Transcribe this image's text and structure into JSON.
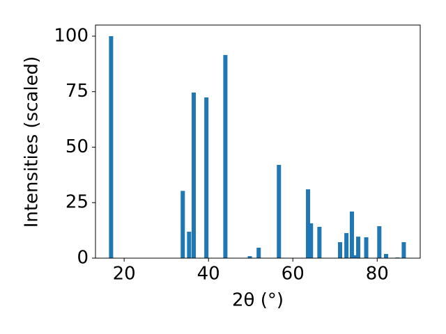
{
  "chart_data": {
    "type": "bar",
    "x_label": "2θ (°)",
    "y_label": "Intensities (scaled)",
    "x": [
      16.9,
      33.9,
      35.4,
      36.5,
      39.5,
      44.0,
      49.8,
      51.9,
      56.7,
      63.6,
      64.3,
      66.3,
      71.2,
      72.7,
      74.0,
      74.7,
      75.5,
      77.4,
      80.5,
      82.1,
      84.8,
      86.3
    ],
    "values": [
      100,
      30.3,
      11.9,
      74.6,
      72.4,
      91.5,
      0.9,
      4.7,
      42.0,
      31.0,
      15.7,
      14.1,
      7.2,
      11.3,
      21.0,
      1.3,
      9.7,
      9.4,
      14.4,
      1.9,
      0.3,
      7.2
    ],
    "color": "#1f77b4",
    "xlim": [
      13.2,
      90.2
    ],
    "xticks": [
      20,
      40,
      60,
      80
    ],
    "ylim": [
      0,
      105
    ],
    "yticks": [
      0,
      25,
      50,
      75,
      100
    ],
    "grid": false
  }
}
